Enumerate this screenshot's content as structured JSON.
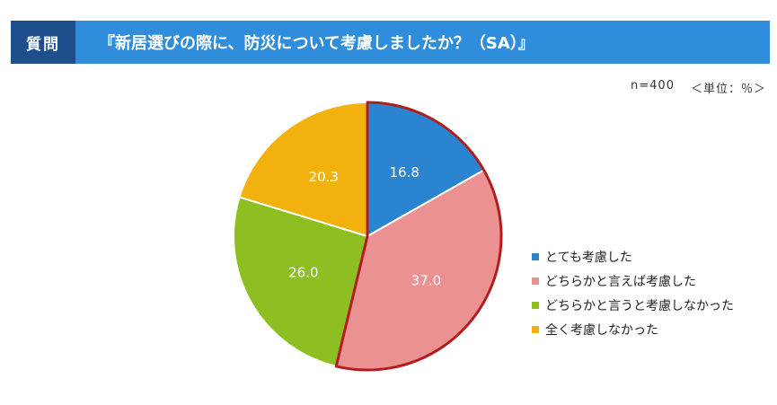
{
  "header": {
    "label": "質問",
    "title": "『新居選びの際に、防災について考慮しましたか？（SA）』"
  },
  "meta": {
    "n": "n=400",
    "unit": "＜単位：％＞"
  },
  "chart_data": {
    "type": "pie",
    "categories": [
      "とても考慮した",
      "どちらかと言えば考慮した",
      "どちらかと言うと考慮しなかった",
      "全く考慮しなかった"
    ],
    "values": [
      16.8,
      37.0,
      26.0,
      20.3
    ],
    "value_labels": [
      "16.8",
      "37.0",
      "26.0",
      "20.3"
    ],
    "colors": [
      "#2b84d0",
      "#ec9191",
      "#8ebf22",
      "#f2b10c"
    ],
    "highlight_color": "#b01e1e",
    "legend_position": "right"
  }
}
